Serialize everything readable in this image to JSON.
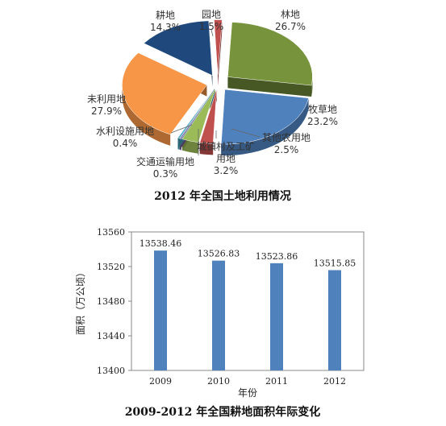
{
  "chart_data": [
    {
      "type": "pie",
      "title": "2012 年全国土地利用情况",
      "slices": [
        {
          "name": "林地",
          "value": 26.7,
          "label": "26.7%",
          "color": "#77933c"
        },
        {
          "name": "牧草地",
          "value": 23.2,
          "label": "23.2%",
          "color": "#4f81bd"
        },
        {
          "name": "其他农用地",
          "value": 2.5,
          "label": "2.5%",
          "color": "#c0504d"
        },
        {
          "name": "城镇村及工矿用地",
          "value": 3.2,
          "label": "3.2%",
          "color": "#9bbb59"
        },
        {
          "name": "交通运输用地",
          "value": 0.3,
          "label": "0.3%",
          "color": "#8064a2"
        },
        {
          "name": "水利设施用地",
          "value": 0.4,
          "label": "0.4%",
          "color": "#4bacc6"
        },
        {
          "name": "未利用地",
          "value": 27.9,
          "label": "27.9%",
          "color": "#f79646"
        },
        {
          "name": "耕地",
          "value": 14.3,
          "label": "14.3%",
          "color": "#1f497d"
        },
        {
          "name": "园地",
          "value": 1.5,
          "label": "1.5%",
          "color": "#c0504d"
        }
      ]
    },
    {
      "type": "bar",
      "title": "2009-2012 年全国耕地面积年际变化",
      "categories": [
        "2009",
        "2010",
        "2011",
        "2012"
      ],
      "values": [
        13538.46,
        13526.83,
        13523.86,
        13515.85
      ],
      "value_labels": [
        "13538.46",
        "13526.83",
        "13523.86",
        "13515.85"
      ],
      "xlabel": "年份",
      "ylabel": "面积（万公顷）",
      "ylim": [
        13400,
        13560
      ],
      "yticks": [
        13400,
        13440,
        13480,
        13520,
        13560
      ],
      "grid": false,
      "color": "#4f81bd"
    }
  ]
}
